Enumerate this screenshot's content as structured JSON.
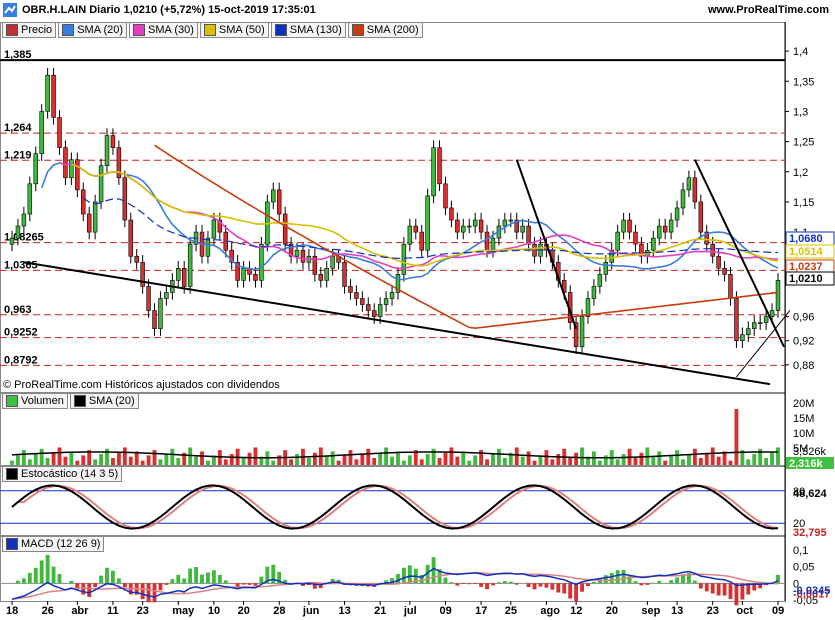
{
  "header": {
    "title": "OBR.H.LAIN Diario 1,0210 (+5,72%) 15-oct-2019 17:35:01",
    "site": "www.ProRealTime.com"
  },
  "legend_price": [
    {
      "label": "Precio",
      "color": "#c03030"
    },
    {
      "label": "SMA (20)",
      "color": "#3a7de0"
    },
    {
      "label": "SMA (30)",
      "color": "#e040c0"
    },
    {
      "label": "SMA (50)",
      "color": "#d8c000"
    },
    {
      "label": "SMA (130)",
      "color": "#1030c0"
    },
    {
      "label": "SMA (200)",
      "color": "#c83c10"
    }
  ],
  "legend_volume": [
    {
      "label": "Volumen",
      "color": "#40c040"
    },
    {
      "label": "SMA (20)",
      "color": "#000000"
    }
  ],
  "legend_stoch": [
    {
      "label": "Estocástico (14 3 5)",
      "color": "#000000"
    }
  ],
  "legend_macd": [
    {
      "label": "MACD (12 26 9)",
      "color": "#1030c0"
    }
  ],
  "copyright": "© ProRealTime.com  Históricos ajustados con dividendos",
  "colors": {
    "up": "#40b840",
    "down": "#d83030",
    "sma20": "#3a7de0",
    "sma30": "#e040c0",
    "sma50": "#d8c000",
    "sma130": "#1030c0",
    "sma200": "#c83c10"
  },
  "chart_data": {
    "type": "candlestick",
    "x_ticks": [
      "18",
      "26",
      "abr",
      "11",
      "23",
      "may",
      "10",
      "20",
      "28",
      "jun",
      "13",
      "21",
      "jul",
      "09",
      "17",
      "25",
      "ago",
      "12",
      "20",
      "sep",
      "13",
      "23",
      "oct",
      "09"
    ],
    "price_axis_ticks": [
      "1,4",
      "1,35",
      "1,3",
      "1,25",
      "1,2",
      "1,15",
      "1,1",
      "1,0237",
      "0,96",
      "0,92",
      "0,88"
    ],
    "price_axis_tags": [
      {
        "label": "1,0680",
        "color": "#1030c0"
      },
      {
        "label": "1,0514",
        "color": "#d8c000"
      },
      {
        "label": "1,0237",
        "color": "#c83c10"
      },
      {
        "label": "1,0210",
        "color": "#000000"
      }
    ],
    "levels": [
      {
        "label": "1,385",
        "value": 1.385,
        "style": "solid"
      },
      {
        "label": "1,264",
        "value": 1.264,
        "style": "dashed"
      },
      {
        "label": "1,219",
        "value": 1.219,
        "style": "dashed"
      },
      {
        "label": "1,08265",
        "value": 1.08265,
        "style": "dashed"
      },
      {
        "label": "1,0365",
        "value": 1.0365,
        "style": "dashed"
      },
      {
        "label": "0,963",
        "value": 0.963,
        "style": "dashed"
      },
      {
        "label": "0,9252",
        "value": 0.9252,
        "style": "dashed"
      },
      {
        "label": "0,8792",
        "value": 0.8792,
        "style": "dashed"
      }
    ],
    "ylim": [
      0.835,
      1.425
    ],
    "close_values": [
      1.09,
      1.11,
      1.13,
      1.18,
      1.23,
      1.3,
      1.36,
      1.29,
      1.24,
      1.19,
      1.22,
      1.17,
      1.13,
      1.1,
      1.15,
      1.21,
      1.26,
      1.24,
      1.19,
      1.12,
      1.06,
      1.05,
      1.01,
      0.97,
      0.94,
      0.99,
      1.0,
      1.02,
      1.04,
      1.01,
      1.08,
      1.1,
      1.06,
      1.09,
      1.12,
      1.1,
      1.07,
      1.05,
      1.02,
      1.04,
      1.03,
      1.02,
      1.08,
      1.15,
      1.17,
      1.13,
      1.08,
      1.06,
      1.07,
      1.05,
      1.06,
      1.03,
      1.02,
      1.04,
      1.06,
      1.05,
      1.01,
      1.0,
      0.99,
      0.98,
      0.97,
      0.96,
      0.98,
      0.99,
      1.0,
      1.03,
      1.08,
      1.11,
      1.1,
      1.07,
      1.16,
      1.24,
      1.18,
      1.14,
      1.12,
      1.1,
      1.11,
      1.11,
      1.12,
      1.1,
      1.07,
      1.09,
      1.11,
      1.12,
      1.12,
      1.1,
      1.11,
      1.08,
      1.06,
      1.08,
      1.07,
      1.05,
      1.02,
      1.0,
      0.95,
      0.91,
      0.96,
      0.99,
      1.01,
      1.03,
      1.05,
      1.07,
      1.1,
      1.12,
      1.1,
      1.08,
      1.06,
      1.07,
      1.09,
      1.11,
      1.1,
      1.12,
      1.14,
      1.17,
      1.19,
      1.15,
      1.1,
      1.08,
      1.06,
      1.04,
      1.03,
      0.99,
      0.92,
      0.93,
      0.94,
      0.95,
      0.95,
      0.96,
      0.97,
      1.02
    ],
    "volume": {
      "axis_ticks": [
        "20M",
        "15M",
        "10M",
        "5M"
      ],
      "tags": [
        "3,326k",
        "2,316k"
      ]
    },
    "stochastic": {
      "axis_ticks": [
        "80",
        "48,624",
        "20"
      ],
      "tags": [
        "48,624",
        "32,795"
      ],
      "values": [
        76,
        53
      ]
    },
    "macd": {
      "axis_ticks": [
        "0,1",
        "0,05",
        "0",
        "-0,05"
      ],
      "tags": [
        "-0,0017",
        "-0,0345"
      ]
    }
  }
}
